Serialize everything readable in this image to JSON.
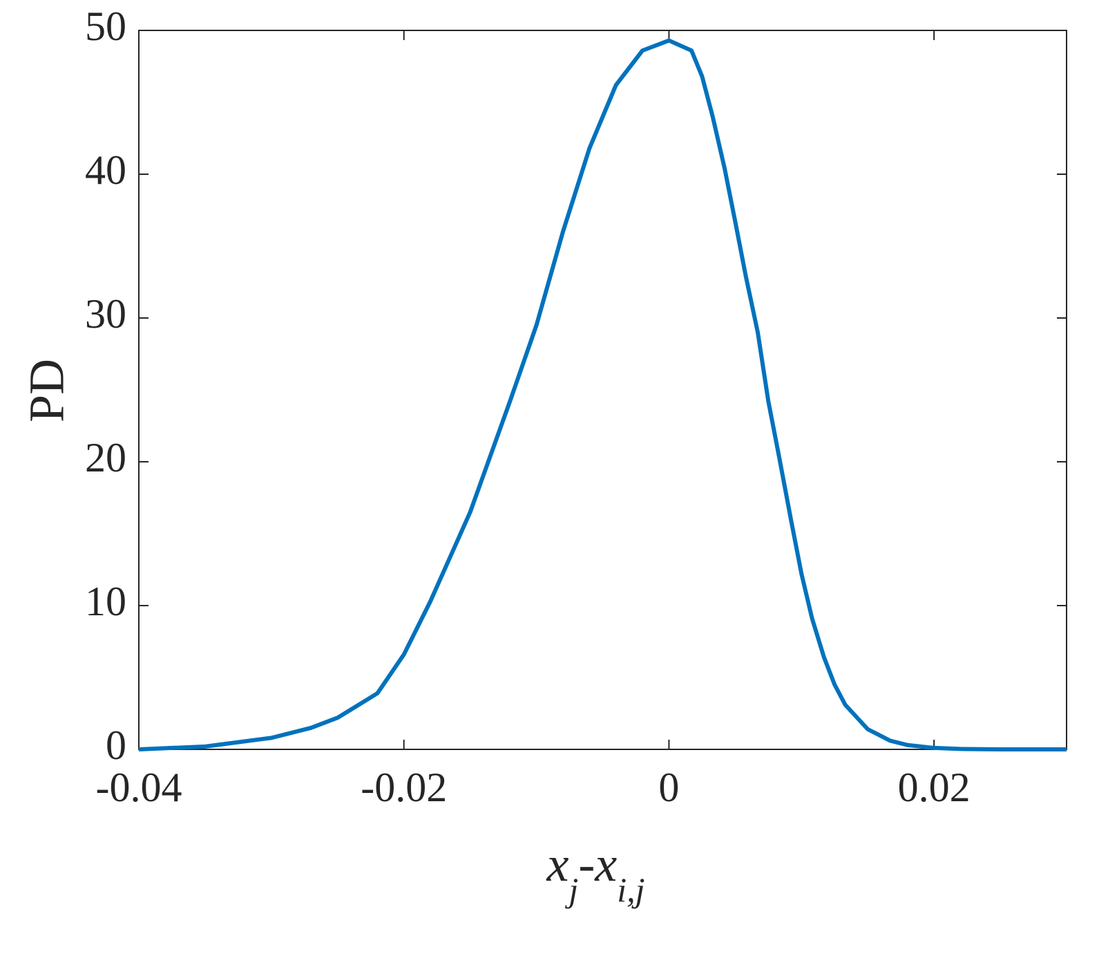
{
  "chart_data": {
    "type": "line",
    "ylabel": "PD",
    "xlabel": [
      "x",
      "j",
      "-x",
      "i,j"
    ],
    "x": [
      -0.04,
      -0.035,
      -0.03,
      -0.027,
      -0.025,
      -0.022,
      -0.02,
      -0.018,
      -0.015,
      -0.012,
      -0.01,
      -0.008,
      -0.006,
      -0.004,
      -0.002,
      0,
      0.0017,
      0.0025,
      0.0033,
      0.0042,
      0.005,
      0.0058,
      0.0067,
      0.0075,
      0.0083,
      0.0092,
      0.01,
      0.0108,
      0.0117,
      0.0125,
      0.0133,
      0.015,
      0.0167,
      0.018,
      0.02,
      0.022,
      0.025,
      0.03
    ],
    "series": [
      {
        "color": "#0072bd",
        "values": [
          0,
          0.2,
          0.8,
          1.5,
          2.2,
          3.9,
          6.6,
          10.3,
          16.5,
          24.2,
          29.5,
          36,
          41.8,
          46.2,
          48.6,
          49.3,
          48.6,
          46.8,
          44,
          40.4,
          36.7,
          32.9,
          29,
          24.2,
          20.4,
          16,
          12.2,
          9.1,
          6.4,
          4.5,
          3.1,
          1.4,
          0.6,
          0.3,
          0.1,
          0.03,
          0,
          0
        ]
      }
    ],
    "xlim": [
      -0.04,
      0.03
    ],
    "xticks": [
      -0.04,
      -0.02,
      0,
      0.02
    ],
    "ylim": [
      0,
      50
    ],
    "yticks": [
      0,
      10,
      20,
      30,
      40,
      50
    ],
    "grid": false
  }
}
